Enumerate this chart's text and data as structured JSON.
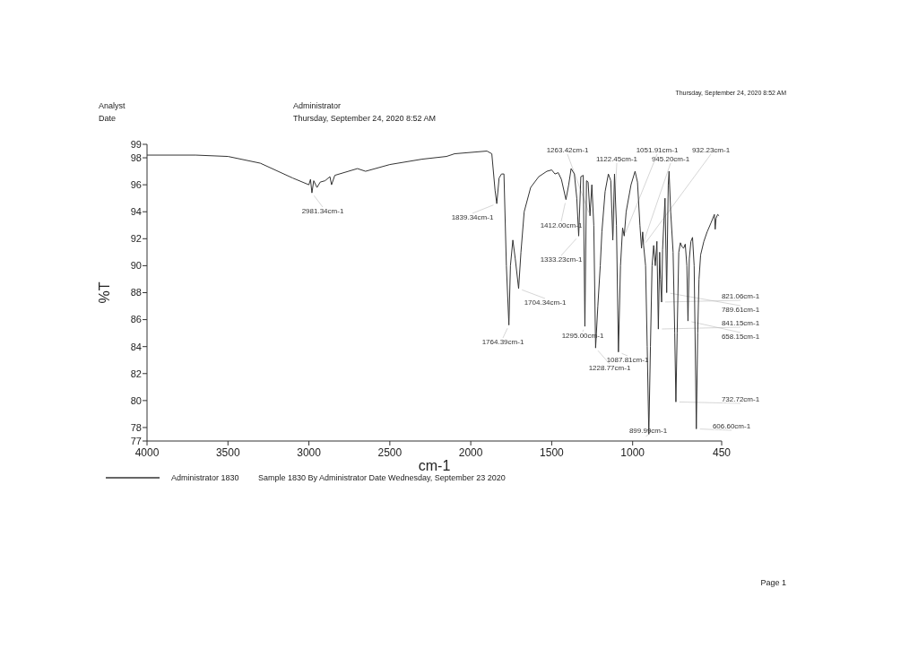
{
  "chart_data": {
    "type": "line",
    "xlabel": "cm-1",
    "ylabel": "%T",
    "x": [
      4000,
      3700,
      3500,
      3300,
      3100,
      3000,
      2990,
      2981.34,
      2970,
      2950,
      2930,
      2900,
      2870,
      2860,
      2840,
      2700,
      2650,
      2500,
      2300,
      2150,
      2100,
      1900,
      1870,
      1850,
      1839.34,
      1825,
      1810,
      1795,
      1780,
      1764.39,
      1755,
      1740,
      1725,
      1704.34,
      1690,
      1670,
      1630,
      1580,
      1530,
      1500,
      1480,
      1460,
      1440,
      1412,
      1395,
      1380,
      1360,
      1345,
      1333.23,
      1320,
      1305,
      1295,
      1285,
      1275,
      1263.42,
      1252,
      1240,
      1228.77,
      1215,
      1200,
      1190,
      1170,
      1150,
      1135,
      1122.45,
      1112,
      1100,
      1087.81,
      1075,
      1062,
      1051.91,
      1040,
      1010,
      985,
      970,
      955,
      945.2,
      938,
      932.23,
      920,
      910,
      899.99,
      890,
      880,
      870,
      860,
      850,
      841.15,
      833,
      828,
      821.06,
      815,
      800,
      789.61,
      780,
      775,
      765,
      750,
      740,
      732.72,
      725,
      715,
      705,
      695,
      685,
      675,
      665,
      658.15,
      650,
      640,
      630,
      620,
      606.6,
      598,
      590,
      580,
      560,
      540,
      515,
      495,
      490,
      485,
      475,
      466
    ],
    "series": [
      {
        "name": "Administrator 1830",
        "color": "#333333",
        "values": [
          98.2,
          98.2,
          98.1,
          97.6,
          96.5,
          96.0,
          96.4,
          95.4,
          96.3,
          95.8,
          96.2,
          96.3,
          96.6,
          96.0,
          96.7,
          97.2,
          97.0,
          97.5,
          97.9,
          98.1,
          98.3,
          98.5,
          98.3,
          95.6,
          94.6,
          96.5,
          96.8,
          96.8,
          90,
          85.6,
          90,
          91.9,
          90.5,
          88.3,
          91,
          94,
          95.8,
          96.6,
          97.0,
          97.1,
          96.8,
          96.9,
          96.4,
          94.9,
          96.0,
          97.2,
          96.8,
          95,
          92.2,
          96.6,
          96.7,
          85.5,
          96.3,
          96.2,
          93.7,
          96.0,
          93,
          83.9,
          87,
          90,
          92.5,
          95.5,
          96.8,
          96.3,
          91.9,
          96.8,
          93,
          83.6,
          90,
          92.8,
          92.2,
          94,
          96,
          97.0,
          96.2,
          93,
          91.3,
          92.5,
          91.5,
          90,
          84,
          77.5,
          84,
          90,
          91.5,
          90,
          91.8,
          85.3,
          91.0,
          89,
          87.3,
          91.2,
          95.0,
          88.0,
          96.0,
          97.0,
          94,
          91,
          85,
          79.9,
          85,
          91,
          91.7,
          91.4,
          91.3,
          91.6,
          90,
          85.9,
          90.5,
          91.8,
          92.1,
          90,
          77.9,
          85,
          89,
          90.8,
          91.8,
          92.5,
          93.2,
          93.8,
          92.7,
          93.5,
          93.8,
          93.7
        ]
      }
    ],
    "xlim": [
      4000,
      450
    ],
    "xticks": [
      4000,
      3500,
      3000,
      2500,
      2000,
      1500,
      1000,
      450
    ],
    "ylim": [
      77,
      99
    ],
    "yticks": [
      77,
      78,
      80,
      82,
      84,
      86,
      88,
      90,
      92,
      94,
      96,
      98,
      99
    ],
    "legend": "bottom left",
    "grid": false,
    "line_style": "solid",
    "marker": "none",
    "annotations": [
      {
        "text": "2981.34cm-1",
        "x": 2981.34,
        "y": 95.4
      },
      {
        "text": "1839.34cm-1",
        "x": 1839.34,
        "y": 94.6
      },
      {
        "text": "1412.00cm-1",
        "x": 1412,
        "y": 94.9
      },
      {
        "text": "1333.23cm-1",
        "x": 1333.23,
        "y": 92.2
      },
      {
        "text": "1263.42cm-1",
        "x": 1263.42,
        "y": 93.7
      },
      {
        "text": "1122.45cm-1",
        "x": 1122.45,
        "y": 91.9
      },
      {
        "text": "945.20cm-1",
        "x": 945.2,
        "y": 91.3
      },
      {
        "text": "932.23cm-1",
        "x": 932.23,
        "y": 91.5
      },
      {
        "text": "1051.91cm-1",
        "x": 1051.91,
        "y": 92.2
      },
      {
        "text": "1704.34cm-1",
        "x": 1704.34,
        "y": 88.3
      },
      {
        "text": "821.06cm-1",
        "x": 821.06,
        "y": 87.3
      },
      {
        "text": "789.61cm-1",
        "x": 789.61,
        "y": 88.0
      },
      {
        "text": "1295.00cm-1",
        "x": 1295,
        "y": 85.5
      },
      {
        "text": "1764.39cm-1",
        "x": 1764.39,
        "y": 85.6
      },
      {
        "text": "841.15cm-1",
        "x": 841.15,
        "y": 85.3
      },
      {
        "text": "658.15cm-1",
        "x": 658.15,
        "y": 85.9
      },
      {
        "text": "1087.81cm-1",
        "x": 1087.81,
        "y": 83.6
      },
      {
        "text": "1228.77cm-1",
        "x": 1228.77,
        "y": 83.9
      },
      {
        "text": "732.72cm-1",
        "x": 732.72,
        "y": 79.9
      },
      {
        "text": "899.99cm-1",
        "x": 899.99,
        "y": 77.5
      },
      {
        "text": "606.60cm-1",
        "x": 606.6,
        "y": 77.9
      },
      "Analyst",
      "Date",
      "Administrator",
      "Thursday, September 24, 2020 8:52 AM",
      "Thursday, September 24, 2020 8:52 AM",
      "Sample 1830 By Administrator Date Wednesday, September 23 2020",
      "Page 1"
    ]
  }
}
